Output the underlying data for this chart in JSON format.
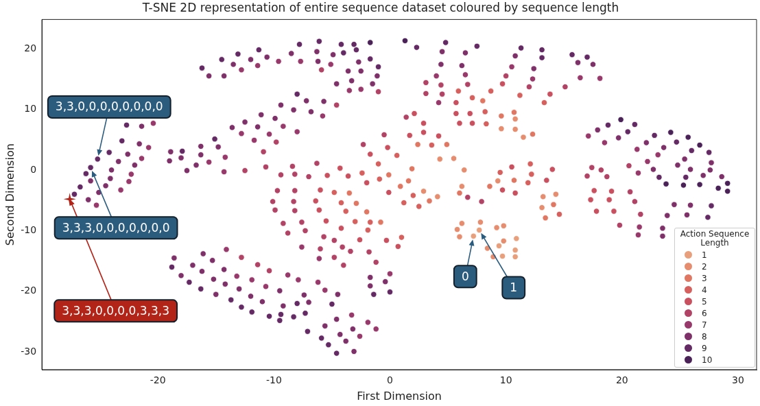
{
  "chart_data": {
    "type": "scatter",
    "title": "T-SNE 2D representation of entire sequence dataset coloured by sequence length",
    "xlabel": "First Dimension",
    "ylabel": "Second Dimension",
    "legend_title": "Action Sequence Length",
    "legend": "bottom right",
    "grid": false,
    "marker": "circle",
    "xlim": [
      -30,
      31.6
    ],
    "ylim": [
      -32.9,
      24.8
    ],
    "xticks": [
      -20,
      -10,
      0,
      10,
      20,
      30
    ],
    "yticks": [
      -30,
      -20,
      -10,
      0,
      10,
      20
    ],
    "annotations": [
      {
        "text": "3,3,0,0,0,0,0,0,0,0",
        "x": -25.2,
        "y": 1.8
      },
      {
        "text": "3,3,3,0,0,0,0,0,0,0",
        "x": -25.8,
        "y": 0.4
      },
      {
        "text": "3,3,3,0,0,0,0,3,3,3",
        "x": -27.6,
        "y": -4.8
      },
      {
        "text": "0",
        "x": 7.2,
        "y": -10.9
      },
      {
        "text": "1",
        "x": 7.7,
        "y": -9.9
      }
    ],
    "series": [
      {
        "name": "1",
        "color": "#e8a07c",
        "x": [
          10.9,
          10.8,
          10.8,
          7.7,
          7.2,
          9.4,
          9.7
        ],
        "values": [
          -11.3,
          -13.2,
          -14.3,
          -9.9,
          -10.9,
          -12.5,
          -14.2
        ]
      },
      {
        "name": "2",
        "color": "#e58d6e",
        "x": [
          2.9,
          4.1,
          9.6,
          4.3,
          5.5,
          6.4,
          9.3,
          6.2,
          10.8,
          10.8,
          11.5,
          13.2,
          14.3,
          13.1,
          6.2,
          7.8,
          5.8,
          6.0,
          9.2,
          9.8,
          9.8,
          8.4,
          8.9
        ],
        "values": [
          -3.5,
          -4.4,
          6.8,
          1.8,
          1.9,
          0.0,
          -1.8,
          -2.7,
          8.4,
          6.7,
          5.4,
          -4.4,
          -4.0,
          -6.2,
          -8.8,
          -8.6,
          -9.8,
          -11.0,
          -9.5,
          -9.2,
          -11.7,
          -12.9,
          -14.3
        ]
      },
      {
        "name": "3",
        "color": "#e07763",
        "x": [
          1.9,
          -0.1,
          1.6,
          0.9,
          -3.5,
          8.0,
          9.6,
          2.4,
          4.9,
          8.6,
          6.0,
          10.7,
          12.3,
          10.7,
          14.1,
          13.4,
          3.4,
          -2.9,
          -2.0,
          -0.8
        ],
        "values": [
          0.2,
          -0.8,
          -1.8,
          -2.7,
          -3.8,
          11.4,
          8.9,
          4.2,
          4.2,
          -2.7,
          -3.8,
          9.5,
          5.9,
          -1.7,
          -5.7,
          -7.9,
          -5.1,
          -5.5,
          -6.9,
          -8.6
        ]
      },
      {
        "name": "4",
        "color": "#d6605d",
        "x": [
          0.6,
          -1.0,
          -2.4,
          -0.9,
          2.0,
          5.9,
          7.1,
          8.7,
          8.2,
          8.3,
          3.6,
          9.5,
          11.2,
          13.3,
          12.1,
          12.2,
          11.9,
          14.6,
          1.2,
          2.5,
          -4.8,
          -4.2,
          -3.8,
          -3.0,
          -1.7,
          -1.9,
          1.0
        ],
        "values": [
          2.4,
          1.0,
          -0.5,
          -1.5,
          -4.2,
          13.0,
          11.9,
          13.0,
          9.6,
          7.6,
          4.1,
          -0.4,
          12.3,
          11.1,
          1.0,
          -0.7,
          -2.1,
          -7.3,
          -5.4,
          -6.0,
          -3.7,
          -5.4,
          -6.8,
          -8.5,
          -8.6,
          -9.9,
          -11.1
        ]
      },
      {
        "name": "5",
        "color": "#c8505f",
        "x": [
          -0.2,
          -1.7,
          -2.0,
          -0.1,
          -4.3,
          -5.4,
          -3.6,
          -6.0,
          5.7,
          9.7,
          2.1,
          2.9,
          1.7,
          2.9,
          4.2,
          5.7,
          6.9,
          6.0,
          7.1,
          10.5,
          9.7,
          13.8,
          14.0,
          13.5,
          10.8,
          17.6,
          19.1,
          17.3,
          18.9,
          17.8,
          19.3,
          -6.4,
          -6.1,
          -5.5,
          -4.2,
          -2.6,
          -0.3,
          0.7
        ],
        "values": [
          3.7,
          2.6,
          -2.1,
          -3.7,
          0.3,
          -0.9,
          -1.0,
          -3.3,
          11.1,
          14.2,
          9.3,
          7.7,
          5.7,
          6.2,
          5.6,
          9.3,
          9.3,
          7.7,
          7.7,
          0.5,
          -3.3,
          12.5,
          0.1,
          -1.7,
          -3.8,
          -3.4,
          -3.5,
          -4.9,
          -4.9,
          -6.8,
          -6.8,
          -5.1,
          -6.6,
          -8.4,
          -9.6,
          -11.5,
          -11.6,
          -12.6
        ]
      },
      {
        "name": "6",
        "color": "#b14466",
        "x": [
          -10.9,
          -12.5,
          -10.7,
          -9.8,
          -9.4,
          -9.7,
          -10.1,
          -9.9,
          -9.2,
          -5.9,
          -1.0,
          -4.6,
          -0.5,
          -2.3,
          -8.4,
          -6.3,
          -8.2,
          -7.0,
          -8.2,
          6.7,
          3.1,
          4.4,
          6.7,
          3.1,
          4.5,
          10.0,
          1.4,
          12.0,
          15.1,
          20.6,
          17.4,
          18.2,
          17.0,
          18.7,
          20.7,
          21.1,
          21.6,
          19.8,
          7.9,
          -8.3,
          -8.2,
          -7.6,
          -8.8,
          -7.3,
          -5.7,
          -4.8,
          -6.0,
          -4.1,
          -3.4,
          -1.8,
          -4.8,
          -4.0,
          -1.2,
          -12.8,
          -11.4,
          -10.4
        ],
        "values": [
          3.0,
          -0.1,
          0.5,
          4.6,
          -0.8,
          -3.4,
          -5.2,
          -6.6,
          -8.8,
          16.5,
          12.9,
          10.7,
          5.8,
          4.2,
          0.6,
          1.1,
          -0.7,
          -1.1,
          -3.4,
          -4.5,
          14.4,
          14.0,
          14.1,
          12.6,
          12.5,
          15.5,
          8.7,
          13.7,
          13.7,
          0.7,
          0.4,
          0.0,
          -1.0,
          -1.1,
          -3.6,
          -5.2,
          -7.3,
          -9.1,
          -5.2,
          -5.2,
          -6.7,
          -8.6,
          -10.4,
          -10.0,
          -11.0,
          -11.6,
          -13.0,
          -12.7,
          -13.4,
          -13.5,
          -14.4,
          -15.7,
          -15.2,
          -14.4,
          -15.6,
          -16.6
        ]
      },
      {
        "name": "7",
        "color": "#97396a",
        "x": [
          -20.4,
          -20.8,
          -21.4,
          -22.3,
          -22.5,
          -23.2,
          -25.3,
          -15.6,
          -14.2,
          -14.3,
          -12.8,
          -11.7,
          -10.4,
          -9.2,
          -12.8,
          -11.4,
          -9.6,
          -7.7,
          -5.1,
          -3.5,
          -2.5,
          -5.8,
          -8.0,
          4.0,
          6.5,
          4.2,
          10.5,
          12.3,
          16.4,
          18.1,
          17.1,
          18.5,
          21.3,
          23.1,
          22.2,
          21.4,
          21.5,
          21.4,
          -7.6,
          -6.1,
          -8.8,
          -7.9,
          -6.2,
          -5.6,
          -3.3,
          -1.9,
          -1.2,
          -2.6,
          0.0,
          -14.1,
          -13.2,
          -11.9,
          -10.7
        ],
        "values": [
          7.7,
          3.7,
          1.9,
          -0.7,
          -1.9,
          -3.3,
          -5.8,
          1.3,
          2.1,
          -0.3,
          6.0,
          4.9,
          5.9,
          7.2,
          16.5,
          17.2,
          17.9,
          17.9,
          17.4,
          13.1,
          13.3,
          8.9,
          6.3,
          15.5,
          15.7,
          11.1,
          17.0,
          15.0,
          15.2,
          15.1,
          5.6,
          4.5,
          3.4,
          2.5,
          1.4,
          -0.5,
          -9.4,
          -10.7,
          -12.7,
          -14.6,
          -17.3,
          -18.1,
          -18.5,
          -19.8,
          -23.9,
          -25.1,
          -26.2,
          -27.4,
          -17.1,
          -13.1,
          -17.5,
          -18.1,
          -19.2
        ]
      },
      {
        "name": "8",
        "color": "#7e3169",
        "x": [
          -15.6,
          -14.3,
          -13.5,
          -12.0,
          -10.6,
          -21.4,
          -21.6,
          -22.6,
          -23.4,
          -22.0,
          -24.0,
          -25.8,
          -24.1,
          -24.5,
          -25.1,
          -26.0,
          -18.9,
          -19.0,
          -18.0,
          -17.5,
          -16.7,
          -16.3,
          -16.3,
          -14.8,
          -13.6,
          -12.5,
          -11.4,
          -11.1,
          -9.9,
          -9.4,
          -8.5,
          -6.3,
          -4.9,
          -6.2,
          -2.7,
          -3.6,
          -2.5,
          -1.1,
          -4.6,
          -3.3,
          -1.5,
          -7.2,
          -5.7,
          -8.3,
          -6.8,
          4.5,
          6.5,
          4.4,
          6.2,
          10.8,
          12.4,
          16.2,
          17.5,
          17.9,
          19.7,
          22.1,
          23.6,
          22.7,
          24.8,
          25.4,
          27.7,
          27.6,
          27.0,
          25.9,
          28.6,
          23.5,
          23.5,
          24.5,
          25.9,
          23.9,
          25.6,
          -9.5,
          -7.4,
          -4.5,
          -9.2,
          -7.0,
          -4.6,
          -5.6,
          -3.2,
          -4.3,
          -3.8,
          -3.1,
          -1.7,
          -0.4,
          -1.7,
          -18.6,
          -16.1,
          -15.3,
          -17.0,
          -18.0,
          -16.2,
          -14.3,
          -15.2,
          -14.2,
          -13.0,
          -15.0,
          -12.0,
          -11.0
        ],
        "values": [
          15.5,
          15.5,
          17.4,
          18.2,
          18.6,
          7.2,
          4.3,
          2.6,
          1.4,
          0.8,
          0.0,
          -1.8,
          -1.4,
          -2.6,
          -3.7,
          -4.9,
          3.0,
          1.5,
          2.0,
          -0.1,
          0.8,
          3.9,
          2.5,
          3.8,
          7.0,
          7.9,
          7.1,
          9.1,
          8.5,
          10.7,
          19.2,
          19.5,
          19.0,
          17.9,
          17.8,
          16.3,
          16.3,
          15.5,
          14.2,
          14.7,
          14.2,
          11.4,
          11.3,
          9.9,
          9.6,
          19.5,
          19.3,
          17.4,
          17.2,
          18.8,
          16.7,
          17.7,
          17.4,
          6.6,
          5.3,
          4.5,
          3.7,
          0.1,
          0.8,
          1.8,
          1.2,
          0.0,
          -0.9,
          0.1,
          -1.1,
          -9.6,
          -10.9,
          -5.7,
          -5.8,
          -7.5,
          -7.4,
          -19.9,
          -20.6,
          -20.5,
          -22.4,
          -21.8,
          -24.6,
          -25.7,
          -26.2,
          -27.1,
          -28.2,
          -29.9,
          -17.7,
          -18.4,
          -19.1,
          -14.5,
          -13.8,
          -14.9,
          -15.7,
          -17.4,
          -16.7,
          -16.4,
          -18.0,
          -18.8,
          -19.6,
          -20.5,
          -20.8,
          -21.7
        ]
      },
      {
        "name": "9",
        "color": "#642a64",
        "x": [
          -16.2,
          -14.5,
          -13.1,
          -11.3,
          -22.7,
          -23.1,
          -24.2,
          -25.2,
          -25.8,
          -26.2,
          -26.7,
          -27.2,
          -17.9,
          -15.1,
          -8.0,
          -7.8,
          -6.1,
          -4.2,
          -3.1,
          -4.0,
          -2.9,
          -1.7,
          -1.0,
          2.3,
          4.8,
          7.5,
          11.3,
          13.1,
          13.1,
          15.7,
          17.0,
          21.1,
          18.8,
          20.5,
          22.8,
          24.7,
          26.0,
          27.5,
          23.2,
          25.5,
          27.7,
          27.4,
          -8.0,
          -5.0,
          -9.4,
          -9.5,
          -8.3,
          -7.3,
          -7.1,
          -5.9,
          -5.3,
          -4.6,
          -1.4,
          0.0,
          -18.8,
          -17.3,
          -16.3,
          -13.7,
          -12.8,
          -11.9,
          -10.4
        ],
        "values": [
          16.8,
          18.2,
          19.1,
          19.8,
          7.4,
          4.8,
          2.9,
          1.8,
          0.4,
          -0.6,
          -2.8,
          -4.0,
          3.1,
          5.1,
          12.5,
          20.7,
          21.2,
          20.7,
          20.7,
          19.3,
          19.8,
          18.3,
          17.0,
          20.2,
          21.0,
          20.4,
          20.1,
          19.8,
          18.5,
          19.0,
          18.6,
          7.5,
          7.4,
          6.3,
          5.7,
          4.6,
          3.2,
          2.9,
          -1.2,
          -1.2,
          -5.9,
          -7.8,
          -22.0,
          -22.1,
          -23.8,
          -24.8,
          -24.2,
          -23.6,
          -26.6,
          -27.7,
          -28.8,
          -30.2,
          -20.5,
          -20.1,
          -16.0,
          -18.5,
          -19.6,
          -21.4,
          -22.6,
          -23.4,
          -24.1
        ]
      },
      {
        "name": "10",
        "color": "#4b2257",
        "x": [
          -1.7,
          1.3,
          19.9,
          24.2,
          25.7,
          26.7,
          23.8,
          25.3,
          26.7,
          29.1,
          28.3,
          29.1
        ],
        "values": [
          21.0,
          21.3,
          8.3,
          6.2,
          5.4,
          4.1,
          -2.3,
          -2.5,
          -2.4,
          -2.2,
          -3.0,
          -3.5
        ]
      }
    ]
  }
}
